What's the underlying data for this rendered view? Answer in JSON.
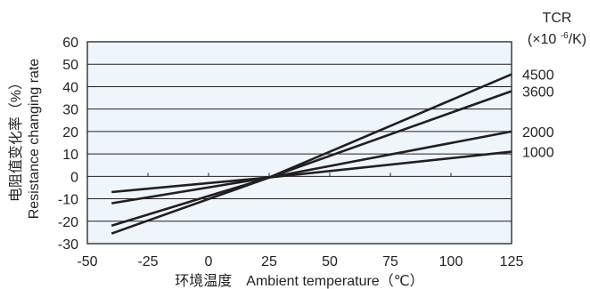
{
  "chart_data": {
    "type": "line",
    "xlabel": "环境温度　Ambient temperature（℃）",
    "ylabel_cn": "电阻值变化率（%）",
    "ylabel_en": "Resistance changing rate",
    "xlim": [
      -50,
      125
    ],
    "ylim": [
      -30,
      60
    ],
    "xticks": [
      -50,
      -25,
      0,
      25,
      50,
      75,
      100,
      125
    ],
    "yticks": [
      -30,
      -20,
      -10,
      0,
      10,
      20,
      30,
      40,
      50,
      60
    ],
    "grid": "horizontal",
    "plot_background": "#eef6fb",
    "line_color": "#231f20",
    "legend_title": "TCR",
    "legend_unit": "(×10 -6/K)",
    "legend_unit_parts": {
      "prefix": "(×10 ",
      "exponent": "-6",
      "suffix": "/K)"
    },
    "series": [
      {
        "name": "4500",
        "x": [
          -40,
          25,
          125
        ],
        "y": [
          -25.5,
          -0.5,
          45.5
        ]
      },
      {
        "name": "3600",
        "x": [
          -40,
          25,
          125
        ],
        "y": [
          -22,
          -0.5,
          38
        ]
      },
      {
        "name": "2000",
        "x": [
          -40,
          25,
          125
        ],
        "y": [
          -12,
          -0.5,
          20
        ]
      },
      {
        "name": "1000",
        "x": [
          -40,
          25,
          125
        ],
        "y": [
          -7,
          -0.5,
          11
        ]
      }
    ]
  }
}
